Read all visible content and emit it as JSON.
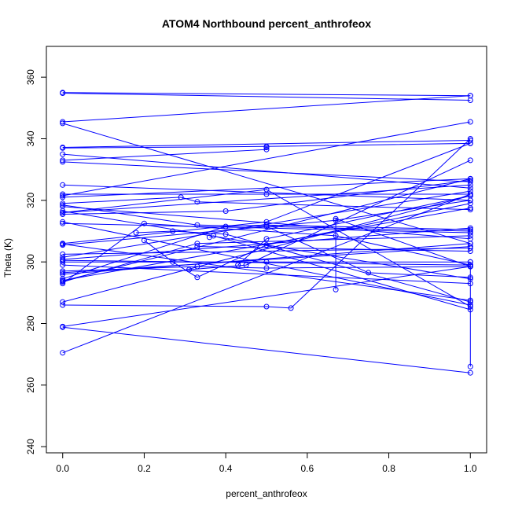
{
  "chart_data": {
    "type": "line",
    "title": "ATOM4 Northbound percent_anthrofeox",
    "xlabel": "percent_anthrofeox",
    "ylabel": "Theta (K)",
    "xlim": [
      -0.04,
      1.04
    ],
    "ylim": [
      238,
      370
    ],
    "x_ticks": [
      0.0,
      0.2,
      0.4,
      0.6,
      0.8,
      1.0
    ],
    "x_tick_labels": [
      "0.0",
      "0.2",
      "0.4",
      "0.6",
      "0.8",
      "1.0"
    ],
    "y_ticks": [
      240,
      260,
      280,
      300,
      320,
      340,
      360
    ],
    "y_tick_labels": [
      "240",
      "260",
      "280",
      "300",
      "320",
      "340",
      "360"
    ],
    "grid": false,
    "line_color": "#0000ff",
    "marker": "open-circle",
    "series": [
      {
        "x": [
          0.0,
          1.0
        ],
        "y": [
          355.0,
          354.0
        ]
      },
      {
        "x": [
          0.0,
          1.0
        ],
        "y": [
          354.8,
          352.5
        ]
      },
      {
        "x": [
          0.0,
          1.0
        ],
        "y": [
          345.5,
          354.0
        ]
      },
      {
        "x": [
          0.0,
          1.0
        ],
        "y": [
          345.0,
          306.0
        ]
      },
      {
        "x": [
          0.0,
          0.5,
          1.0
        ],
        "y": [
          337.0,
          337.5,
          338.5
        ]
      },
      {
        "x": [
          0.0,
          1.0
        ],
        "y": [
          337.2,
          339.5
        ]
      },
      {
        "x": [
          0.0,
          1.0
        ],
        "y": [
          335.0,
          324.0
        ]
      },
      {
        "x": [
          0.0,
          0.5,
          0.5
        ],
        "y": [
          333.0,
          336.5,
          337.2
        ]
      },
      {
        "x": [
          0.0,
          1.0
        ],
        "y": [
          332.5,
          326.0
        ]
      },
      {
        "x": [
          0.0,
          1.0
        ],
        "y": [
          325.0,
          320.0
        ]
      },
      {
        "x": [
          0.0,
          0.5,
          1.0
        ],
        "y": [
          322.0,
          322.0,
          322.0
        ]
      },
      {
        "x": [
          0.0,
          1.0
        ],
        "y": [
          321.0,
          327.0
        ]
      },
      {
        "x": [
          0.0,
          0.29,
          0.33,
          1.0
        ],
        "y": [
          319.0,
          321.0,
          319.5,
          317.0
        ]
      },
      {
        "x": [
          0.0,
          0.33,
          1.0
        ],
        "y": [
          318.5,
          312.0,
          310.0
        ]
      },
      {
        "x": [
          0.0,
          1.0
        ],
        "y": [
          316.5,
          294.5
        ]
      },
      {
        "x": [
          0.0,
          1.0
        ],
        "y": [
          316.0,
          325.0
        ]
      },
      {
        "x": [
          0.0,
          0.4,
          1.0
        ],
        "y": [
          315.5,
          316.5,
          326.5
        ]
      },
      {
        "x": [
          0.0,
          1.0
        ],
        "y": [
          313.0,
          286.0
        ]
      },
      {
        "x": [
          0.0,
          0.5,
          1.0
        ],
        "y": [
          306.0,
          313.0,
          338.5
        ]
      },
      {
        "x": [
          0.0,
          0.67,
          1.0
        ],
        "y": [
          305.5,
          313.5,
          320.0
        ]
      },
      {
        "x": [
          0.0,
          1.0
        ],
        "y": [
          302.5,
          304.5
        ]
      },
      {
        "x": [
          0.0,
          1.0
        ],
        "y": [
          301.5,
          323.0
        ]
      },
      {
        "x": [
          0.0,
          1.0
        ],
        "y": [
          300.5,
          299.0
        ]
      },
      {
        "x": [
          0.0,
          0.5,
          1.0
        ],
        "y": [
          300.0,
          300.0,
          300.0
        ]
      },
      {
        "x": [
          0.0,
          1.0
        ],
        "y": [
          299.0,
          293.0
        ]
      },
      {
        "x": [
          0.0,
          0.33,
          0.5,
          1.0
        ],
        "y": [
          297.0,
          298.5,
          298.0,
          298.5
        ]
      },
      {
        "x": [
          0.0,
          1.0
        ],
        "y": [
          296.5,
          305.0
        ]
      },
      {
        "x": [
          0.0,
          0.4,
          0.5,
          1.0
        ],
        "y": [
          294.5,
          311.5,
          312.0,
          310.5
        ]
      },
      {
        "x": [
          0.0,
          0.33,
          1.0
        ],
        "y": [
          293.5,
          306.0,
          308.5
        ]
      },
      {
        "x": [
          0.0,
          0.2,
          0.67,
          1.0
        ],
        "y": [
          293.0,
          312.5,
          308.5,
          299.0
        ]
      },
      {
        "x": [
          0.0,
          1.0
        ],
        "y": [
          287.0,
          321.5
        ]
      },
      {
        "x": [
          0.0,
          0.5,
          0.56,
          1.0
        ],
        "y": [
          286.0,
          285.5,
          285.0,
          340.0
        ]
      },
      {
        "x": [
          0.0,
          1.0
        ],
        "y": [
          279.0,
          298.5
        ]
      },
      {
        "x": [
          0.0,
          1.0
        ],
        "y": [
          278.8,
          264.0
        ]
      },
      {
        "x": [
          0.0,
          1.0
        ],
        "y": [
          270.5,
          322.0
        ]
      },
      {
        "x": [
          0.18,
          0.27,
          0.4,
          1.0
        ],
        "y": [
          309.5,
          310.0,
          309.0,
          287.0
        ]
      },
      {
        "x": [
          0.2,
          0.27,
          0.33,
          0.5,
          1.0
        ],
        "y": [
          307.0,
          300.0,
          295.0,
          305.5,
          319.0
        ]
      },
      {
        "x": [
          0.31,
          0.45,
          1.0
        ],
        "y": [
          297.5,
          299.0,
          333.0
        ]
      },
      {
        "x": [
          0.36,
          0.37,
          1.0
        ],
        "y": [
          308.0,
          308.5,
          284.5
        ]
      },
      {
        "x": [
          0.43,
          0.5,
          1.0
        ],
        "y": [
          299.0,
          307.5,
          321.5
        ]
      },
      {
        "x": [
          0.5,
          0.75,
          1.0
        ],
        "y": [
          311.5,
          296.5,
          295.0
        ]
      },
      {
        "x": [
          0.67,
          0.67,
          1.0
        ],
        "y": [
          291.0,
          314.0,
          298.5
        ]
      },
      {
        "x": [
          0.0,
          1.0
        ],
        "y": [
          318.0,
          307.5
        ]
      },
      {
        "x": [
          0.0,
          1.0
        ],
        "y": [
          293.8,
          327.0
        ]
      },
      {
        "x": [
          0.0,
          0.5,
          1.0
        ],
        "y": [
          316.0,
          323.5,
          285.5
        ]
      },
      {
        "x": [
          0.0,
          1.0
        ],
        "y": [
          312.5,
          309.5
        ]
      },
      {
        "x": [
          0.0,
          1.0
        ],
        "y": [
          296.0,
          306.0
        ]
      },
      {
        "x": [
          0.0,
          1.0
        ],
        "y": [
          321.5,
          345.5
        ]
      },
      {
        "x": [
          0.0,
          1.0
        ],
        "y": [
          305.8,
          287.5
        ]
      },
      {
        "x": [
          0.0,
          1.0
        ],
        "y": [
          300.8,
          311.0
        ]
      },
      {
        "x": [
          0.0,
          1.0
        ],
        "y": [
          294.0,
          317.5
        ]
      },
      {
        "x": [
          0.33,
          1.0
        ],
        "y": [
          305.0,
          303.5
        ]
      },
      {
        "x": [
          1.0,
          1.0
        ],
        "y": [
          266.0,
          300.0
        ]
      }
    ]
  }
}
